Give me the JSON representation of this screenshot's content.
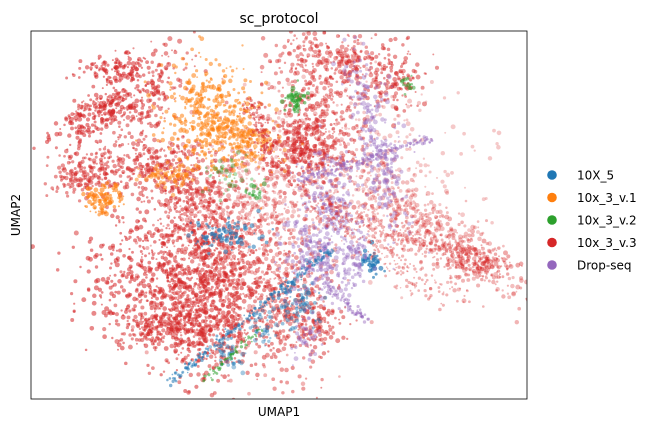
{
  "chart_data": {
    "type": "scatter",
    "title": "sc_protocol",
    "xlabel": "UMAP1",
    "ylabel": "UMAP2",
    "x_ticks": "none",
    "y_ticks": "none",
    "grid": false,
    "legend_position": "right",
    "series": [
      {
        "name": "10X_5",
        "color": "#1f77b4"
      },
      {
        "name": "10x_3_v.1",
        "color": "#ff7f0e"
      },
      {
        "name": "10x_3_v.2",
        "color": "#2ca02c"
      },
      {
        "name": "10x_3_v.3",
        "color": "#d62728"
      },
      {
        "name": "Drop-seq",
        "color": "#9467bd"
      }
    ]
  }
}
